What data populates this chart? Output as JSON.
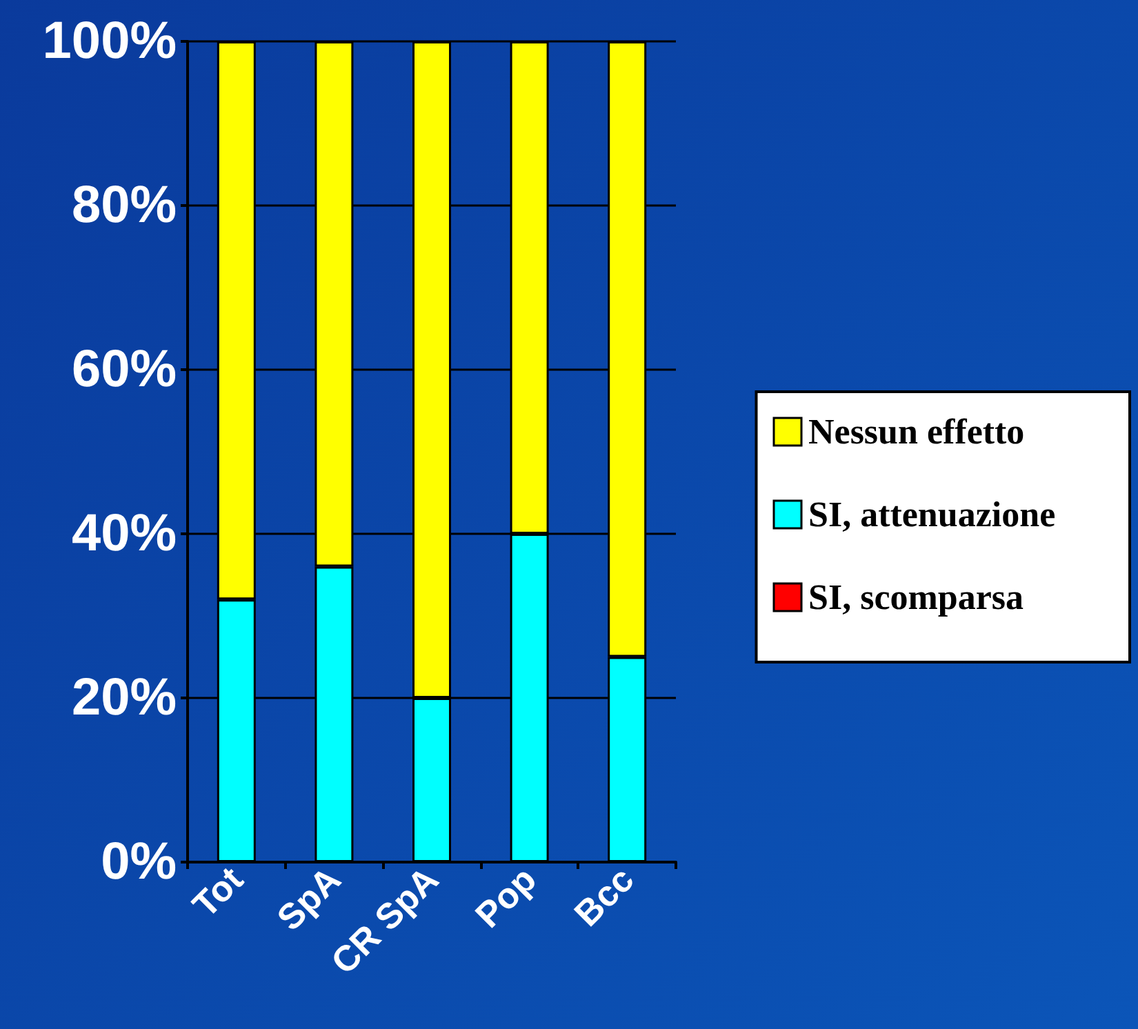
{
  "chart_data": {
    "type": "bar",
    "stacked": true,
    "categories": [
      "Tot",
      "SpA",
      "CR SpA",
      "Pop",
      "Bcc"
    ],
    "series": [
      {
        "name": "SI, scomparsa",
        "color": "#ff0000",
        "values": [
          0,
          0,
          0,
          0,
          0
        ]
      },
      {
        "name": "SI, attenuazione",
        "color": "#00ffff",
        "values": [
          32,
          36,
          20,
          40,
          25
        ]
      },
      {
        "name": "Nessun effetto",
        "color": "#ffff00",
        "values": [
          68,
          64,
          80,
          60,
          75
        ]
      }
    ],
    "ylim": [
      0,
      100
    ],
    "yticks": [
      {
        "value": 0,
        "label": "0%"
      },
      {
        "value": 20,
        "label": "20%"
      },
      {
        "value": 40,
        "label": "40%"
      },
      {
        "value": 60,
        "label": "60%"
      },
      {
        "value": 80,
        "label": "80%"
      },
      {
        "value": 100,
        "label": "100%"
      }
    ],
    "grid": "y",
    "legend": "right"
  }
}
